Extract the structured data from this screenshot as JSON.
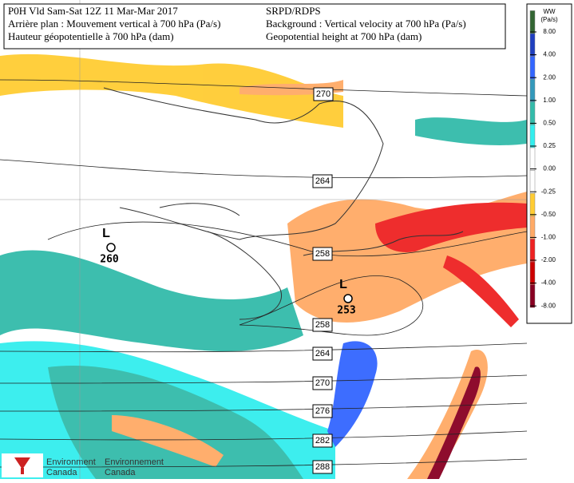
{
  "header": {
    "left": [
      "P0H Vld Sam-Sat 12Z 11 Mar-Mar 2017",
      "Arrière plan : Mouvement vertical à 700 hPa (Pa/s)",
      "Hauteur géopotentielle à 700 hPa (dam)"
    ],
    "right": [
      "SRPD/RDPS",
      "Background : Vertical velocity at 700 hPa (Pa/s)",
      "Geopotential height at 700 hPa (dam)"
    ]
  },
  "legend": {
    "title": "WW",
    "unit": "(Pa/s)",
    "entries": [
      {
        "label": "8.00",
        "color": "#336633"
      },
      {
        "label": "4.00",
        "color": "#1f3fbf"
      },
      {
        "label": "2.00",
        "color": "#3366ff"
      },
      {
        "label": "1.00",
        "color": "#3399bb"
      },
      {
        "label": "0.50",
        "color": "#33bbaa"
      },
      {
        "label": "0.25",
        "color": "#33eeee"
      },
      {
        "label": "0.00",
        "color": "#ffffff"
      },
      {
        "label": "-0.25",
        "color": "#ffffff"
      },
      {
        "label": "-0.50",
        "color": "#ffcc33"
      },
      {
        "label": "-1.00",
        "color": "#ffaa66"
      },
      {
        "label": "-2.00",
        "color": "#ee2222"
      },
      {
        "label": "-4.00",
        "color": "#cc0000"
      },
      {
        "label": "-8.00",
        "color": "#880022"
      }
    ]
  },
  "contour_labels": [
    "270",
    "264",
    "258",
    "258",
    "264",
    "270",
    "276",
    "282",
    "288"
  ],
  "lows": [
    {
      "symbol": "L",
      "value": "260"
    },
    {
      "symbol": "L",
      "value": "253"
    }
  ],
  "footer": {
    "english": [
      "Environment",
      "Canada"
    ],
    "french": [
      "Environnement",
      "Canada"
    ]
  }
}
